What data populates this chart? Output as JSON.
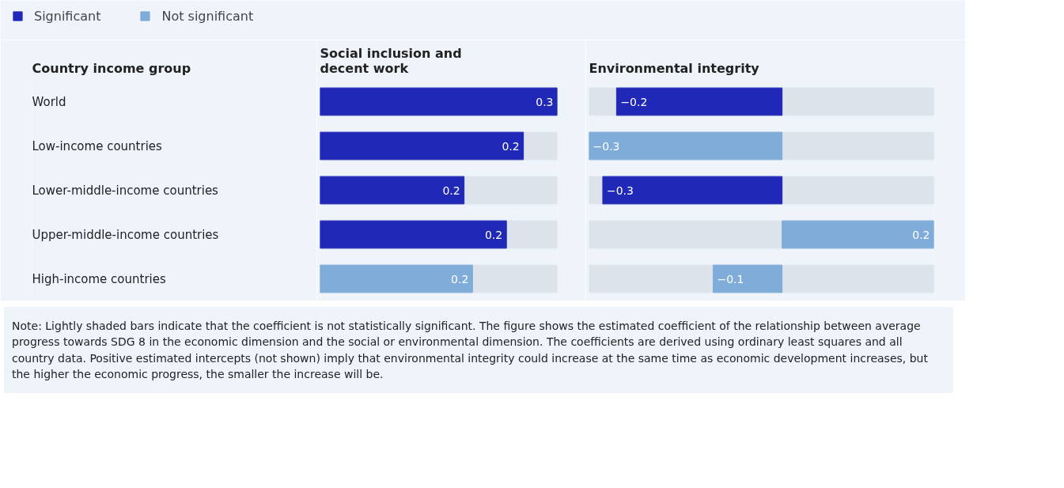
{
  "chart_data": [
    {
      "type": "bar",
      "orientation": "horizontal",
      "title": "Social inclusion and decent work",
      "ylabel": "Country income group",
      "categories": [
        "World",
        "Low-income countries",
        "Lower-middle-income countries",
        "Upper-middle-income countries",
        "High-income countries"
      ],
      "xlim": [
        0,
        0.28
      ],
      "tick_labels": "y",
      "legend": "top left",
      "grid": false,
      "series": [
        {
          "name": "Significant",
          "color": "#2028b8",
          "values": [
            0.28,
            0.24,
            0.17,
            0.22,
            null
          ],
          "value_labels": [
            "0.3",
            "0.2",
            "0.2",
            "0.2",
            null
          ]
        },
        {
          "name": "Not significant",
          "color": "#80acd9",
          "values": [
            null,
            null,
            null,
            null,
            0.18
          ],
          "value_labels": [
            null,
            null,
            null,
            null,
            "0.2"
          ]
        }
      ],
      "annotations": [
        "Note: Lightly shaded bars indicate that the coefficient is not statistically significant. The figure shows the estimated coefficient of the relationship between average progress towards SDG 8 in the economic dimension and the social or environmental dimension. The coefficients are derived using ordinary least squares and all country data. Positive estimated intercepts (not shown) imply that environmental integrity could increase at the same time as economic development increases, but the higher the economic progress, the smaller the increase will be."
      ]
    },
    {
      "type": "bar",
      "orientation": "horizontal",
      "title": "Environmental integrity",
      "categories": [
        null,
        null,
        null,
        null,
        null
      ],
      "xlim": [
        -0.28,
        0.22
      ],
      "tick_labels": false,
      "grid": false,
      "series": [
        {
          "color": "#2028b8",
          "values": [
            -0.24,
            null,
            -0.26,
            null,
            null
          ],
          "value_labels": [
            "−0.2",
            null,
            "−0.3",
            null,
            null
          ]
        },
        {
          "color": "#80acd9",
          "values": [
            null,
            -0.28,
            null,
            0.22,
            -0.1
          ],
          "value_labels": [
            null,
            "−0.3",
            null,
            "0.2",
            "−0.1"
          ]
        }
      ]
    }
  ]
}
